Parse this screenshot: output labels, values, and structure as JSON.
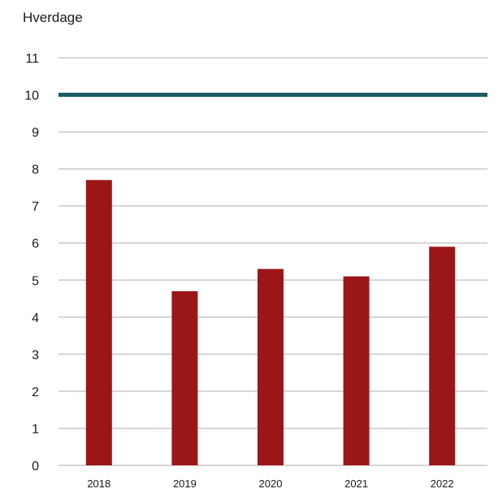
{
  "chart_data": {
    "type": "bar",
    "ylabel": "Hverdage",
    "categories": [
      "2018",
      "2019",
      "2020",
      "2021",
      "2022"
    ],
    "values": [
      7.7,
      4.7,
      5.3,
      5.1,
      5.9
    ],
    "ylim": [
      0,
      11
    ],
    "yticks": [
      "0",
      "1",
      "2",
      "3",
      "4",
      "5",
      "6",
      "7",
      "8",
      "9",
      "10",
      "11"
    ],
    "reference_line": {
      "value": 10,
      "color": "#1a5c63"
    },
    "bar_color": "#9b1717",
    "grid": true,
    "grid_color": "#c8c8c8"
  }
}
